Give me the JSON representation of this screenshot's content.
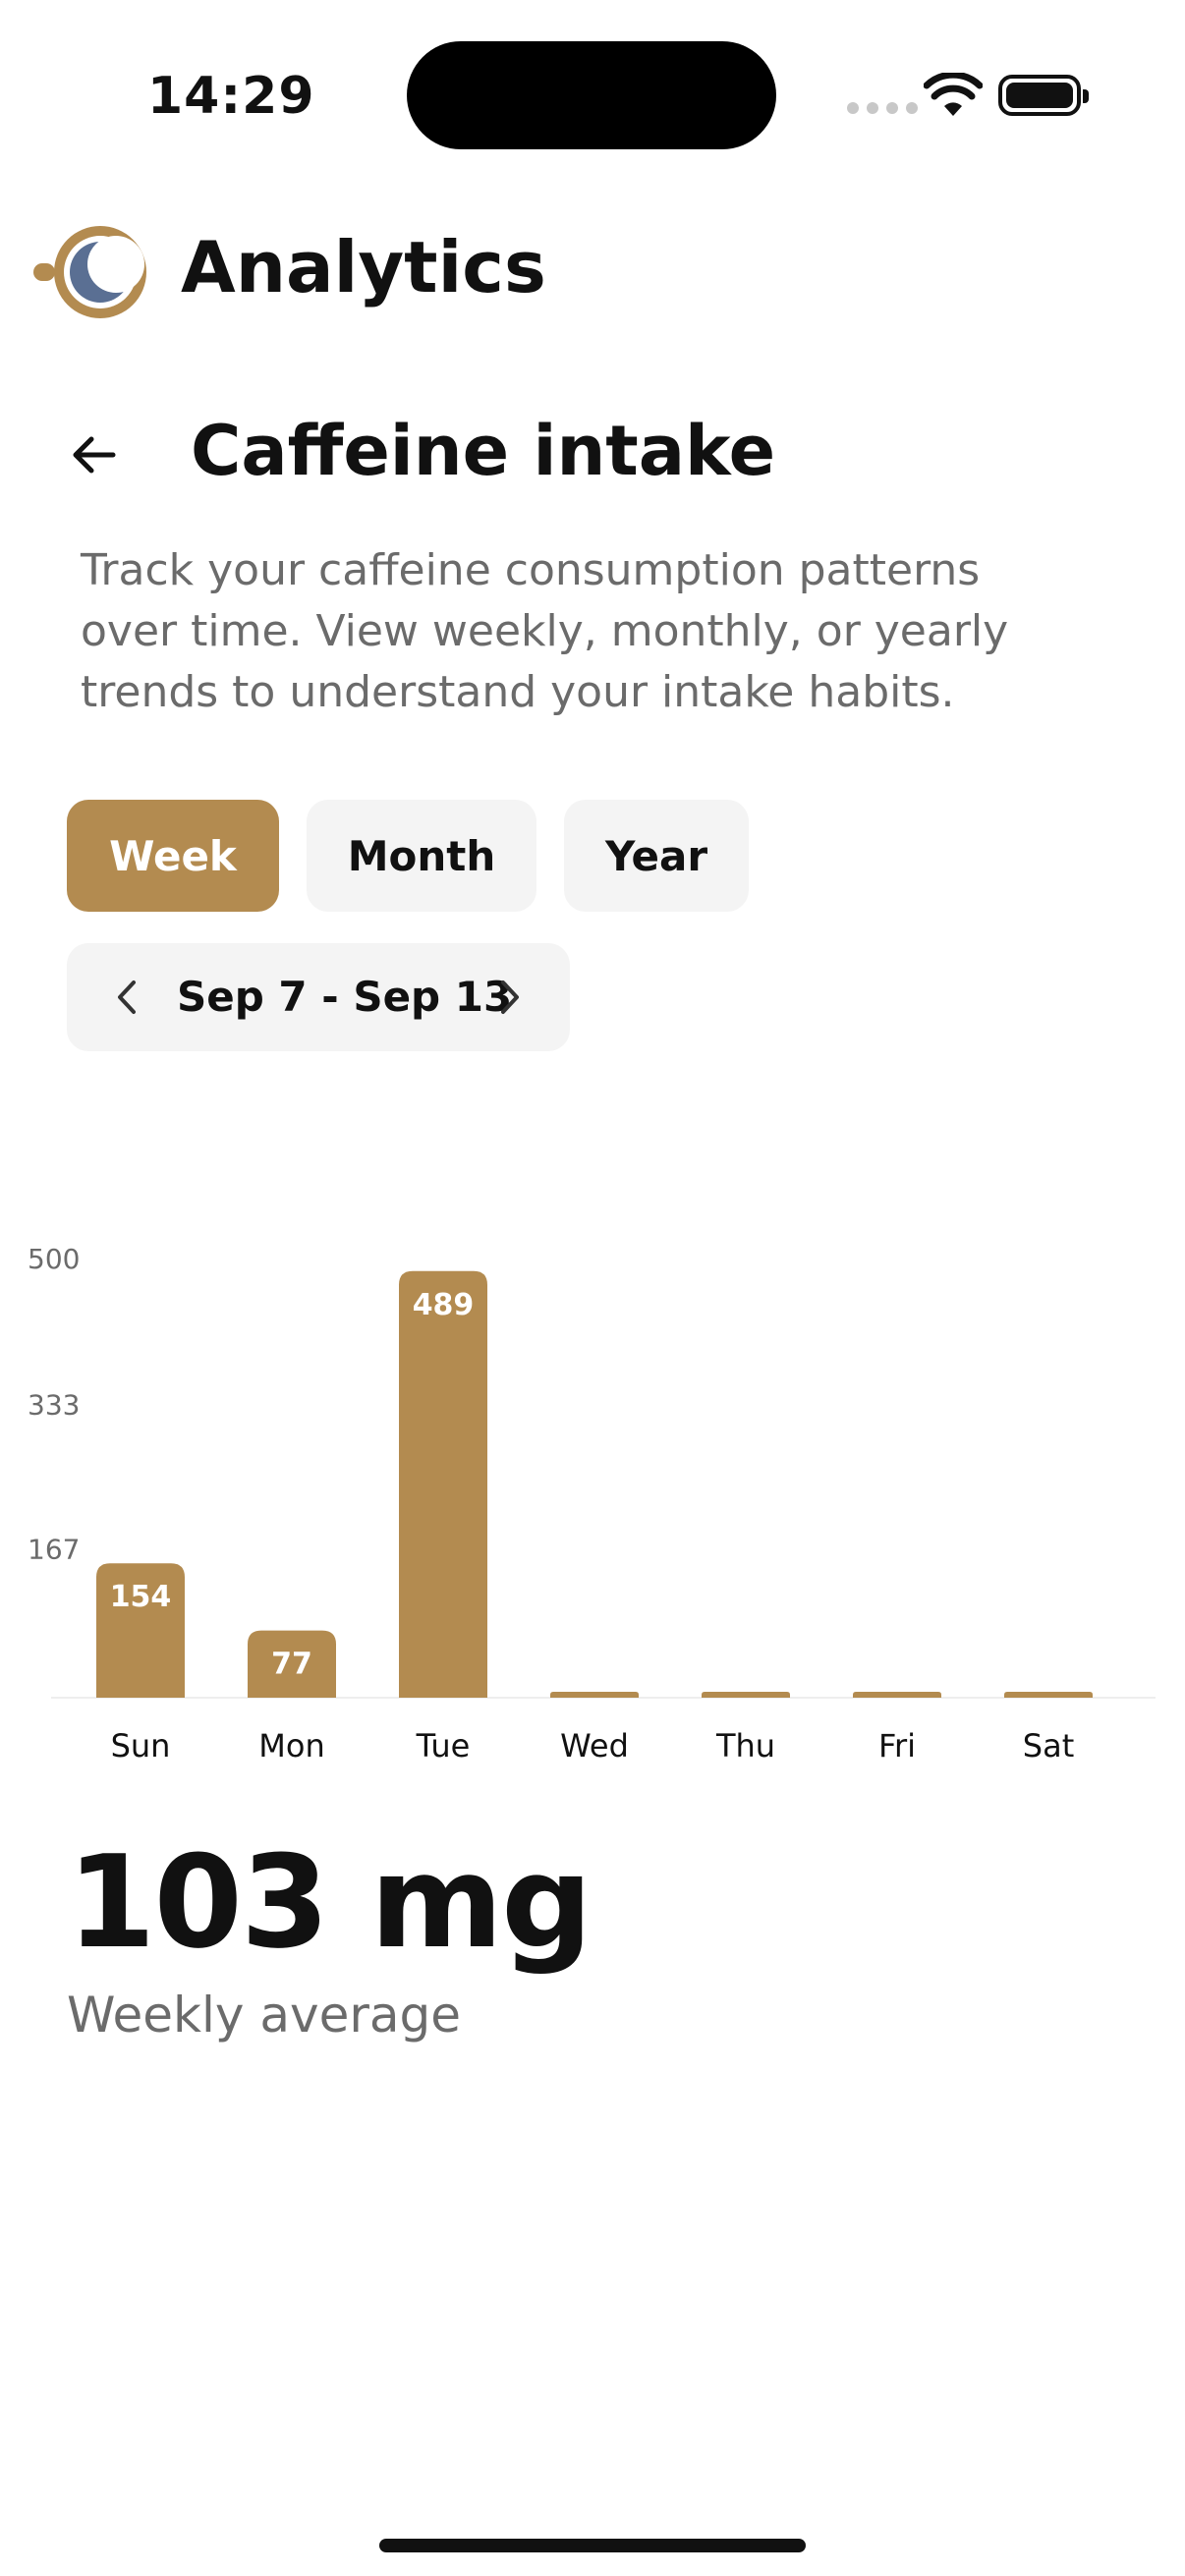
{
  "status_bar": {
    "time": "14:29"
  },
  "app": {
    "title": "Analytics",
    "logo_icon": "coffee-moon-logo-icon",
    "accent": "#b38b50"
  },
  "page": {
    "title": "Caffeine intake",
    "description": "Track your caffeine consumption patterns over time. View weekly, monthly, or yearly trends to understand your intake habits."
  },
  "tabs": [
    {
      "label": "Week",
      "selected": true
    },
    {
      "label": "Month",
      "selected": false
    },
    {
      "label": "Year",
      "selected": false
    }
  ],
  "date_range": {
    "label": "Sep 7 - Sep 13"
  },
  "chart_data": {
    "type": "bar",
    "categories": [
      "Sun",
      "Mon",
      "Tue",
      "Wed",
      "Thu",
      "Fri",
      "Sat"
    ],
    "values": [
      154,
      77,
      489,
      0,
      0,
      0,
      0
    ],
    "data_labels": [
      "154",
      "77",
      "489",
      "",
      "",
      "",
      ""
    ],
    "y_ticks": [
      167,
      333,
      500
    ],
    "ylim": [
      0,
      500
    ],
    "bar_color": "#b38b50",
    "grid": false
  },
  "summary": {
    "value": "103 mg",
    "label": "Weekly average"
  }
}
